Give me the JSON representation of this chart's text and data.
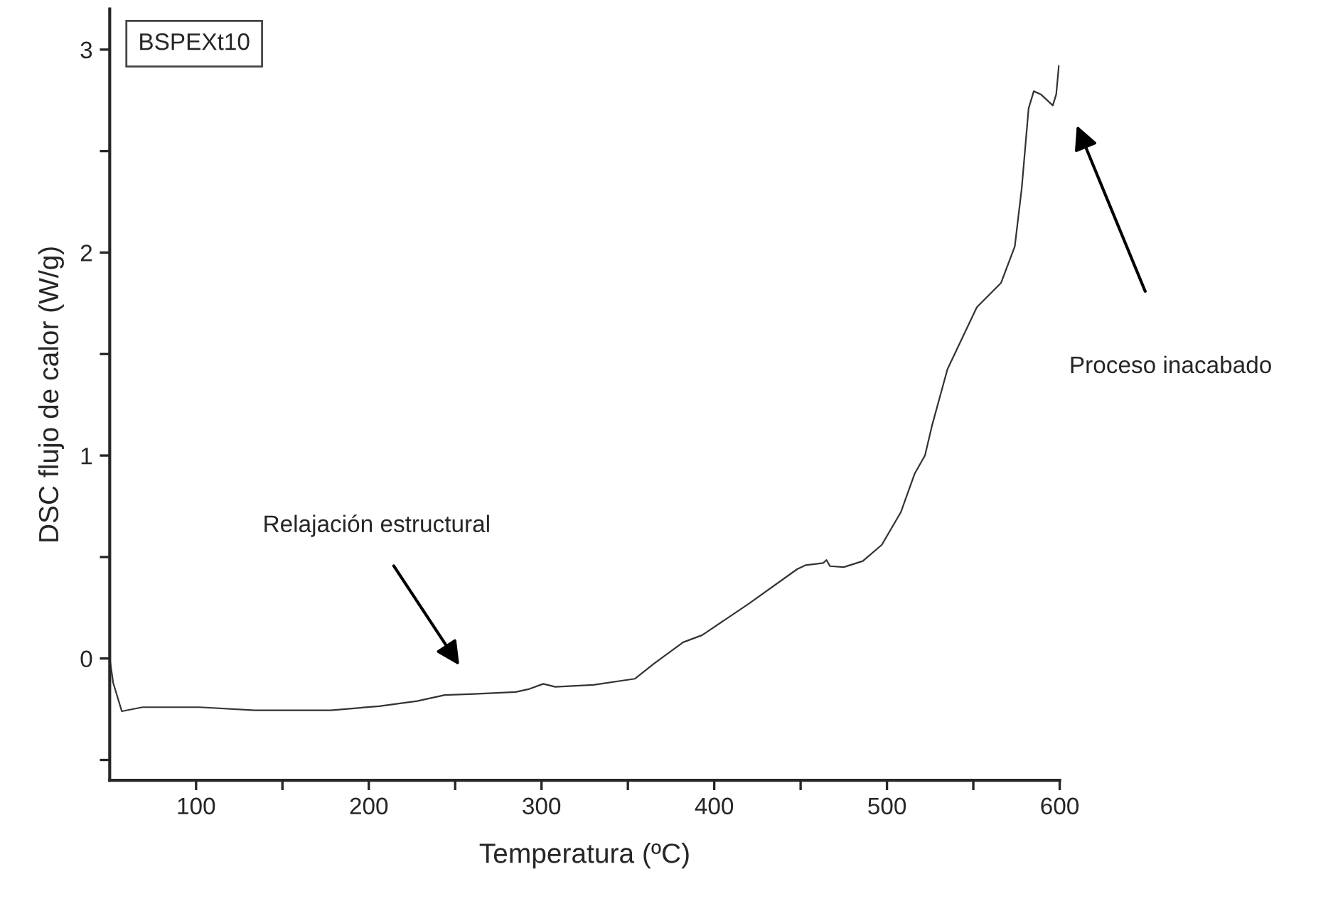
{
  "chart_data": {
    "type": "line",
    "xlabel": "Temperatura (ºC)",
    "ylabel": "DSC flujo de calor (W/g)",
    "x": [
      50,
      52,
      57,
      69,
      102,
      134,
      178,
      206,
      228,
      244,
      261,
      285,
      293,
      301,
      308,
      330,
      354,
      365,
      382,
      393,
      420,
      448,
      453,
      463,
      465,
      467,
      475,
      486,
      497,
      508,
      516,
      522,
      526,
      535,
      552,
      566,
      574,
      578,
      582,
      585,
      589,
      596,
      598,
      599.5
    ],
    "series": [
      {
        "color": "#333333",
        "values": [
          0.0,
          -0.12,
          -0.26,
          -0.24,
          -0.24,
          -0.255,
          -0.255,
          -0.235,
          -0.21,
          -0.18,
          -0.175,
          -0.165,
          -0.15,
          -0.125,
          -0.14,
          -0.13,
          -0.1,
          -0.026,
          0.08,
          0.115,
          0.27,
          0.44,
          0.46,
          0.47,
          0.485,
          0.455,
          0.45,
          0.48,
          0.56,
          0.72,
          0.91,
          1.0,
          1.145,
          1.425,
          1.73,
          1.85,
          2.03,
          2.315,
          2.71,
          2.795,
          2.78,
          2.725,
          2.78,
          2.92
        ]
      }
    ],
    "xlim": [
      50,
      600
    ],
    "ylim": [
      -0.6,
      3.2
    ],
    "xticks": [
      100,
      {
        "value": 150,
        "label": null
      },
      200,
      {
        "value": 250,
        "label": null
      },
      300,
      {
        "value": 350,
        "label": null
      },
      400,
      {
        "value": 450,
        "label": null
      },
      500,
      {
        "value": 550,
        "label": null
      },
      600
    ],
    "yticks": [
      {
        "value": -0.5,
        "label": null
      },
      0,
      {
        "value": 0.5,
        "label": null
      },
      1,
      {
        "value": 1.5,
        "label": null
      },
      2,
      {
        "value": 2.5,
        "label": null
      },
      3
    ],
    "annotations": [
      "BSPEXt10",
      "Relajación estructural",
      "Proceso inacabado"
    ]
  }
}
